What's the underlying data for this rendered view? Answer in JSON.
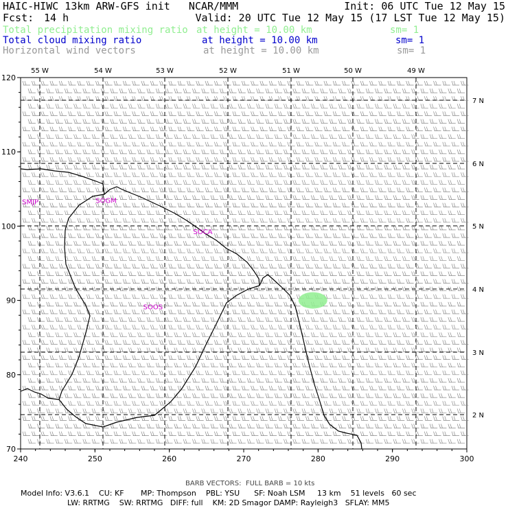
{
  "header": {
    "line1_left": "HAIC-HIWC 13km ARW-GFS init   NCAR/MMM",
    "line1_right": "Init: 06 UTC Tue 12 May 15",
    "fcst_label": "Fcst:",
    "fcst_value": "14 h",
    "valid": "Valid: 20 UTC Tue 12 May 15 (17 LST Tue 12 May 15)"
  },
  "fields": [
    {
      "name": "Total precipitation mixing ratio",
      "height": "at height = 10.00 km",
      "sm": "sm= 1",
      "color": "#90ee90"
    },
    {
      "name": "Total cloud mixing ratio",
      "height": "at height = 10.00 km",
      "sm": "sm= 1",
      "color": "#0000cc"
    },
    {
      "name": "Horizontal wind vectors",
      "height": "at height = 10.00 km",
      "sm": "sm= 1",
      "color": "#999999"
    }
  ],
  "chart_data": {
    "type": "map",
    "x_range": [
      240,
      300
    ],
    "y_range": [
      70,
      120
    ],
    "x_ticks": [
      "240",
      "250",
      "260",
      "270",
      "280",
      "290",
      "300"
    ],
    "y_ticks": [
      "70",
      "80",
      "90",
      "100",
      "110",
      "120"
    ],
    "lon_labels": [
      "55 W",
      "54 W",
      "53 W",
      "52 W",
      "51 W",
      "50 W",
      "49 W"
    ],
    "lat_labels": [
      "7 N",
      "6 N",
      "5 N",
      "4 N",
      "3 N",
      "2 N"
    ],
    "stations": [
      {
        "label": "SMJP",
        "x": 241.3,
        "y": 103.3
      },
      {
        "label": "SOGM",
        "x": 251.5,
        "y": 103.5
      },
      {
        "label": "SOCA",
        "x": 264.5,
        "y": 99.3
      },
      {
        "label": "SOOS",
        "x": 257.8,
        "y": 89.2
      }
    ],
    "precip_blob": {
      "x": 279.3,
      "y": 90.0
    },
    "barb_note": "BARB VECTORS:  FULL BARB = 10 kts"
  },
  "footer": {
    "line1": "Model Info: V3.6.1    CU: KF       MP: Thompson    PBL: YSU      SF: Noah LSM     13 km    51 levels   60 sec",
    "line2": "LW: RRTMG    SW: RRTMG   DIFF: full    KM: 2D Smagor DAMP: Rayleigh3   SFLAY: MM5"
  },
  "colors": {
    "station": "#cc00cc",
    "barb": "#888888",
    "precip": "#90ee90",
    "coast": "#000000",
    "grid": "#000000"
  }
}
